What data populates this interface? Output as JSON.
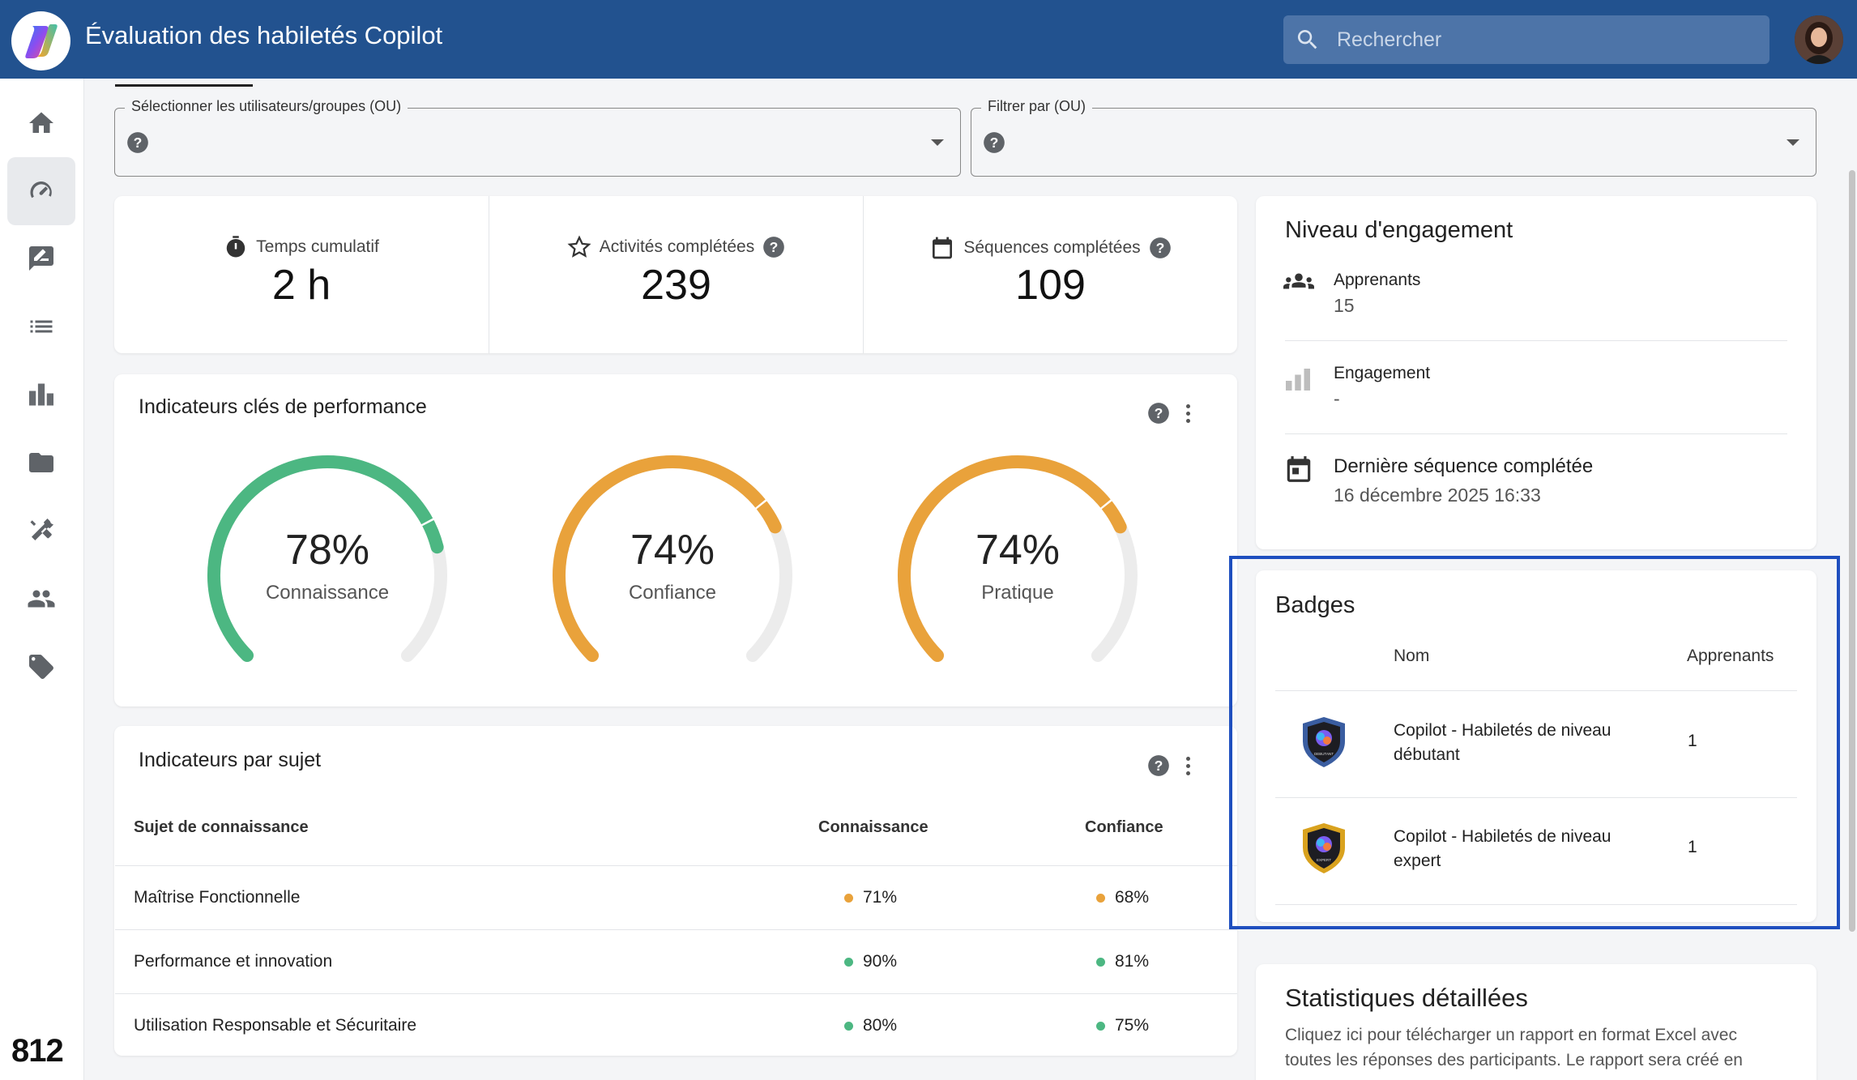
{
  "header": {
    "title": "Évaluation des habiletés Copilot",
    "search_placeholder": "Rechercher"
  },
  "sidebar": {
    "items": [
      {
        "icon": "home-icon"
      },
      {
        "icon": "dashboard-icon",
        "active": true
      },
      {
        "icon": "rate-review-icon"
      },
      {
        "icon": "list-icon"
      },
      {
        "icon": "leaderboard-icon"
      },
      {
        "icon": "folder-icon"
      },
      {
        "icon": "tools-icon"
      },
      {
        "icon": "people-icon"
      },
      {
        "icon": "tag-icon"
      }
    ],
    "brand": "812"
  },
  "filters": {
    "users_label": "Sélectionner les utilisateurs/groupes (OU)",
    "filter_label": "Filtrer par (OU)"
  },
  "stats": {
    "time_label": "Temps cumulatif",
    "time_value": "2 h",
    "activities_label": "Activités complétées",
    "activities_value": "239",
    "sequences_label": "Séquences complétées",
    "sequences_value": "109"
  },
  "kpi": {
    "title": "Indicateurs clés de performance",
    "gauges": [
      {
        "pct": "78%",
        "label": "Connaissance",
        "value": 78,
        "color": "#4cb782"
      },
      {
        "pct": "74%",
        "label": "Confiance",
        "value": 74,
        "color": "#e9a23b"
      },
      {
        "pct": "74%",
        "label": "Pratique",
        "value": 74,
        "color": "#e9a23b"
      }
    ]
  },
  "topics": {
    "title": "Indicateurs par sujet",
    "col_subject": "Sujet de connaissance",
    "col_knowledge": "Connaissance",
    "col_confidence": "Confiance",
    "rows": [
      {
        "subject": "Maîtrise Fonctionnelle",
        "knowledge": "71%",
        "knowledge_color": "#e9a23b",
        "confidence": "68%",
        "confidence_color": "#e9a23b"
      },
      {
        "subject": "Performance et innovation",
        "knowledge": "90%",
        "knowledge_color": "#4cb782",
        "confidence": "81%",
        "confidence_color": "#4cb782"
      },
      {
        "subject": "Utilisation Responsable et Sécuritaire",
        "knowledge": "80%",
        "knowledge_color": "#4cb782",
        "confidence": "75%",
        "confidence_color": "#4cb782"
      }
    ]
  },
  "engagement": {
    "title": "Niveau d'engagement",
    "learners_label": "Apprenants",
    "learners_value": "15",
    "engagement_label": "Engagement",
    "engagement_value": "-",
    "last_label": "Dernière séquence complétée",
    "last_value": "16 décembre 2025 16:33"
  },
  "badges": {
    "title": "Badges",
    "col_name": "Nom",
    "col_learners": "Apprenants",
    "rows": [
      {
        "name": "Copilot - Habiletés de niveau débutant",
        "count": "1",
        "icon": "badge-beginner-icon",
        "rim": "#3a5da0",
        "tag": "DEBUTANT"
      },
      {
        "name": "Copilot - Habiletés de niveau expert",
        "count": "1",
        "icon": "badge-expert-icon",
        "rim": "#d9a21e",
        "tag": "EXPERT"
      }
    ]
  },
  "detailed": {
    "title": "Statistiques détaillées",
    "description": "Cliquez ici pour télécharger un rapport en format Excel avec toutes les réponses des participants. Le rapport sera créé en"
  }
}
